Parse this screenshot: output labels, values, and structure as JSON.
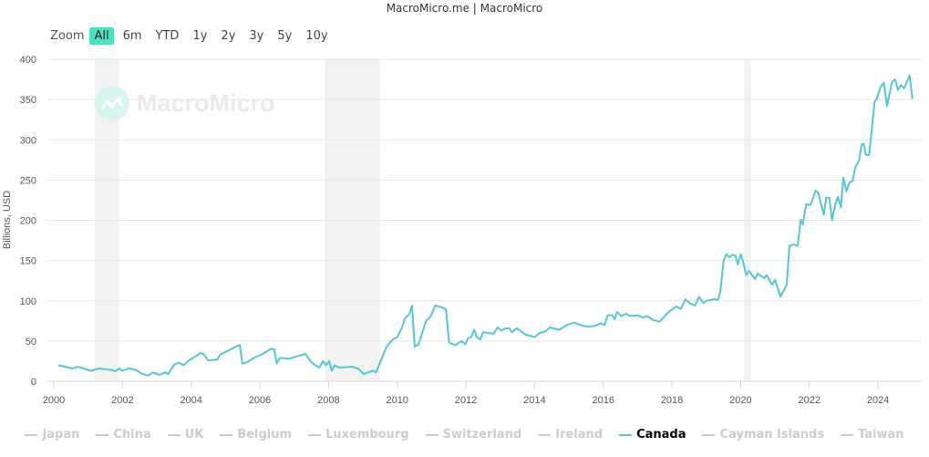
{
  "header": {
    "title": "MacroMicro.me | MacroMicro"
  },
  "range_selector": {
    "label": "Zoom",
    "buttons": [
      "All",
      "6m",
      "YTD",
      "1y",
      "2y",
      "3y",
      "5y",
      "10y"
    ],
    "active": "All"
  },
  "watermark": "MacroMicro",
  "colors": {
    "series": "#55c6d2",
    "recession": "#f2f2f2",
    "grid": "#e6e6e6",
    "active_button": "#4fe0c4"
  },
  "chart_data": {
    "type": "line",
    "ylabel": "Billions, USD",
    "xlim": [
      2000,
      2025.2
    ],
    "ylim": [
      0,
      400
    ],
    "y_ticks": [
      0,
      50,
      100,
      150,
      200,
      250,
      300,
      350,
      400
    ],
    "x_ticks": [
      2000,
      2002,
      2004,
      2006,
      2008,
      2010,
      2012,
      2014,
      2016,
      2018,
      2020,
      2022,
      2024
    ],
    "grid": true,
    "legend_placement": "bottom",
    "legend": [
      "Japan",
      "China",
      "UK",
      "Belgium",
      "Luxembourg",
      "Switzerland",
      "Ireland",
      "Canada",
      "Cayman Islands",
      "Taiwan"
    ],
    "visible_series": "Canada",
    "recession_bands": [
      [
        2001.2,
        2001.9
      ],
      [
        2007.9,
        2009.5
      ],
      [
        2020.1,
        2020.3
      ]
    ],
    "series": [
      {
        "name": "Canada",
        "points": [
          [
            2000.13,
            20
          ],
          [
            2000.53,
            16
          ],
          [
            2000.71,
            18
          ],
          [
            2001.07,
            13
          ],
          [
            2001.33,
            16
          ],
          [
            2001.69,
            14
          ],
          [
            2001.78,
            12.5
          ],
          [
            2001.91,
            16
          ],
          [
            2002.0,
            13
          ],
          [
            2002.18,
            16
          ],
          [
            2002.4,
            14
          ],
          [
            2002.53,
            10
          ],
          [
            2002.74,
            7
          ],
          [
            2002.89,
            11
          ],
          [
            2003.07,
            8
          ],
          [
            2003.24,
            11
          ],
          [
            2003.33,
            9
          ],
          [
            2003.51,
            21
          ],
          [
            2003.64,
            23
          ],
          [
            2003.78,
            20
          ],
          [
            2003.91,
            25
          ],
          [
            2004.27,
            35
          ],
          [
            2004.36,
            34
          ],
          [
            2004.49,
            26
          ],
          [
            2004.76,
            27
          ],
          [
            2004.84,
            33
          ],
          [
            2005.16,
            40
          ],
          [
            2005.29,
            43
          ],
          [
            2005.42,
            45
          ],
          [
            2005.49,
            22
          ],
          [
            2005.64,
            24
          ],
          [
            2005.82,
            29
          ],
          [
            2006.09,
            34
          ],
          [
            2006.31,
            40
          ],
          [
            2006.42,
            40
          ],
          [
            2006.49,
            22
          ],
          [
            2006.58,
            29
          ],
          [
            2006.84,
            28
          ],
          [
            2007.16,
            32
          ],
          [
            2007.33,
            34
          ],
          [
            2007.51,
            23
          ],
          [
            2007.73,
            17
          ],
          [
            2007.84,
            25
          ],
          [
            2007.93,
            20
          ],
          [
            2008.02,
            25
          ],
          [
            2008.09,
            13
          ],
          [
            2008.18,
            20
          ],
          [
            2008.31,
            17
          ],
          [
            2008.71,
            18
          ],
          [
            2008.89,
            15
          ],
          [
            2009.02,
            9
          ],
          [
            2009.29,
            13
          ],
          [
            2009.38,
            11
          ],
          [
            2009.51,
            24
          ],
          [
            2009.69,
            43
          ],
          [
            2009.87,
            52
          ],
          [
            2010.0,
            55
          ],
          [
            2010.13,
            66
          ],
          [
            2010.22,
            78
          ],
          [
            2010.36,
            84
          ],
          [
            2010.43,
            94
          ],
          [
            2010.51,
            43
          ],
          [
            2010.62,
            46
          ],
          [
            2010.84,
            75
          ],
          [
            2010.98,
            81
          ],
          [
            2011.11,
            94
          ],
          [
            2011.29,
            92
          ],
          [
            2011.42,
            89
          ],
          [
            2011.51,
            48
          ],
          [
            2011.69,
            45
          ],
          [
            2011.87,
            50
          ],
          [
            2011.98,
            46
          ],
          [
            2012.06,
            53
          ],
          [
            2012.15,
            55
          ],
          [
            2012.24,
            64
          ],
          [
            2012.33,
            54
          ],
          [
            2012.42,
            52
          ],
          [
            2012.5,
            61
          ],
          [
            2012.68,
            60
          ],
          [
            2012.81,
            59
          ],
          [
            2012.92,
            67
          ],
          [
            2013.03,
            63
          ],
          [
            2013.12,
            65
          ],
          [
            2013.26,
            66
          ],
          [
            2013.34,
            61
          ],
          [
            2013.48,
            66
          ],
          [
            2013.61,
            62
          ],
          [
            2013.74,
            58
          ],
          [
            2014.01,
            55
          ],
          [
            2014.14,
            60
          ],
          [
            2014.32,
            62
          ],
          [
            2014.45,
            67
          ],
          [
            2014.72,
            64
          ],
          [
            2014.94,
            70
          ],
          [
            2015.16,
            73
          ],
          [
            2015.38,
            69
          ],
          [
            2015.6,
            68
          ],
          [
            2015.78,
            69
          ],
          [
            2015.91,
            72
          ],
          [
            2016.04,
            70
          ],
          [
            2016.13,
            82
          ],
          [
            2016.26,
            82
          ],
          [
            2016.33,
            77
          ],
          [
            2016.4,
            86
          ],
          [
            2016.53,
            81
          ],
          [
            2016.66,
            84
          ],
          [
            2016.79,
            81
          ],
          [
            2017.02,
            82
          ],
          [
            2017.15,
            79
          ],
          [
            2017.28,
            81
          ],
          [
            2017.46,
            76
          ],
          [
            2017.64,
            74
          ],
          [
            2017.9,
            86
          ],
          [
            2018.12,
            93
          ],
          [
            2018.26,
            90
          ],
          [
            2018.39,
            102
          ],
          [
            2018.52,
            97
          ],
          [
            2018.67,
            94
          ],
          [
            2018.79,
            105
          ],
          [
            2018.92,
            97
          ],
          [
            2019.01,
            100
          ],
          [
            2019.23,
            102
          ],
          [
            2019.34,
            101
          ],
          [
            2019.41,
            112
          ],
          [
            2019.5,
            149
          ],
          [
            2019.58,
            158
          ],
          [
            2019.67,
            154
          ],
          [
            2019.76,
            157
          ],
          [
            2019.85,
            156
          ],
          [
            2019.92,
            145
          ],
          [
            2020.0,
            158
          ],
          [
            2020.07,
            149
          ],
          [
            2020.16,
            132
          ],
          [
            2020.25,
            137
          ],
          [
            2020.42,
            127
          ],
          [
            2020.49,
            134
          ],
          [
            2020.69,
            128
          ],
          [
            2020.76,
            132
          ],
          [
            2020.91,
            120
          ],
          [
            2021.0,
            126
          ],
          [
            2021.16,
            105
          ],
          [
            2021.34,
            120
          ],
          [
            2021.42,
            168
          ],
          [
            2021.55,
            170
          ],
          [
            2021.66,
            168
          ],
          [
            2021.75,
            201
          ],
          [
            2021.81,
            195
          ],
          [
            2021.91,
            220
          ],
          [
            2022.02,
            219
          ],
          [
            2022.08,
            224
          ],
          [
            2022.18,
            237
          ],
          [
            2022.26,
            234
          ],
          [
            2022.42,
            207
          ],
          [
            2022.49,
            228
          ],
          [
            2022.58,
            228
          ],
          [
            2022.66,
            200
          ],
          [
            2022.75,
            219
          ],
          [
            2022.83,
            229
          ],
          [
            2022.92,
            216
          ],
          [
            2022.99,
            253
          ],
          [
            2023.08,
            236
          ],
          [
            2023.17,
            247
          ],
          [
            2023.26,
            249
          ],
          [
            2023.34,
            266
          ],
          [
            2023.45,
            275
          ],
          [
            2023.52,
            294
          ],
          [
            2023.58,
            295
          ],
          [
            2023.65,
            281
          ],
          [
            2023.74,
            281
          ],
          [
            2023.9,
            347
          ],
          [
            2023.96,
            351
          ],
          [
            2024.08,
            366
          ],
          [
            2024.17,
            371
          ],
          [
            2024.26,
            342
          ],
          [
            2024.41,
            372
          ],
          [
            2024.5,
            375
          ],
          [
            2024.58,
            362
          ],
          [
            2024.67,
            368
          ],
          [
            2024.76,
            364
          ],
          [
            2024.92,
            380
          ],
          [
            2025.0,
            351
          ]
        ]
      }
    ]
  }
}
